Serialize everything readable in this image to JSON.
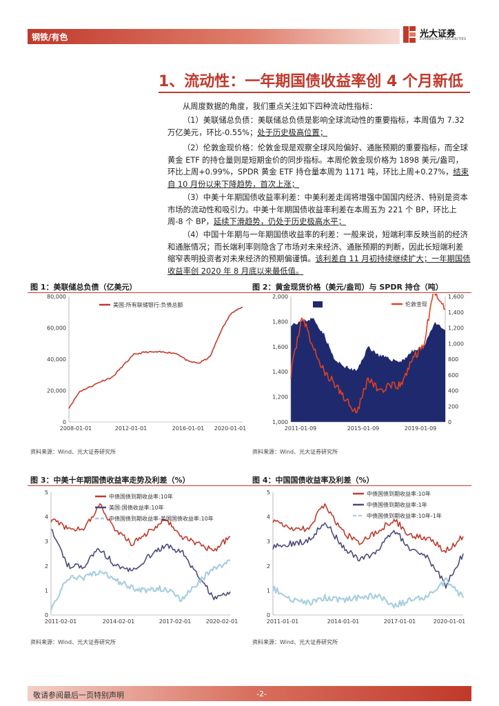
{
  "header": {
    "category": "钢铁/有色",
    "brand_cn": "光大证券",
    "brand_en": "EVERBRIGHT SECURITIES"
  },
  "section": {
    "title": "1、流动性：一年期国债收益率创 4 个月新低"
  },
  "body": {
    "intro": "从周度数据的角度，我们重点关注如下四种流动性指标：",
    "p1a": "（1）美联储总负债：美联储总负债是影响全球流动性的重要指标，本周值为 7.32 万亿美元，环比-0.55%；",
    "p1b": "处于历史极高位置；",
    "p2a": "（2）伦敦金现价格：伦敦金现是观察全球风险偏好、通胀预期的重要指标，而全球黄金 ETF 的持仓量则是短期金价的同步指标。本周伦敦金现价格为 1898 美元/盎司，环比上周+0.99%，SPDR 黄金 ETF 持仓量本周为 1171 吨，环比上周+0.27%，",
    "p2b": "结束自 10 月份以来下降趋势，首次上涨；",
    "p3a": "（3）中美十年期国债收益率利差：中美利差走阔将增强中国国内经济、特别是资本市场的流动性和吸引力。中美十年期国债收益率利差在本周五为 221 个 BP，环比上周-8 个 BP，",
    "p3b": "延续下滑趋势，仍处于历史极高水平；",
    "p4a": "（4）中国十年期与一年期国债收益率的利差：一般来说，短端利率反映当前的经济和通胀情况；而长端利率则隐含了市场对未来经济、通胀预期的判断，因此长短端利差缩窄表明投资者对未来经济的预期偏谨慎。",
    "p4b": "该利差自 11 月初持续继续扩大；一年期国债收益率创 2020 年 8 月底以来最低值。"
  },
  "figures": [
    {
      "title": "图 1：美联储总负债（亿美元）",
      "source": "资料来源：Wind、光大证券研究所"
    },
    {
      "title": "图 2：黄金现货价格（美元/盎司）与 SPDR 持仓（吨）",
      "source": "资料来源：Wind、光大证券研究所"
    },
    {
      "title": "图 3：中美十年期国债收益率走势及利差（%）",
      "source": "资料来源：Wind、光大证券研究所"
    },
    {
      "title": "图 4：中国国债收益率及利差（%）",
      "source": "资料来源：Wind、光大证券研究所"
    }
  ],
  "footer": {
    "disclaimer": "敬请参阅最后一页特别声明",
    "page": "-2-"
  },
  "colors": {
    "accent": "#c0392b",
    "navy": "#1f2a6e",
    "purple": "#4a4a7a",
    "lightblue": "#a8cfe0"
  },
  "chart_data": [
    {
      "type": "line",
      "x": [
        "2008-01-01",
        "2009-01-01",
        "2010-01-01",
        "2011-01-01",
        "2012-01-01",
        "2013-01-01",
        "2014-01-01",
        "2015-01-01",
        "2016-01-01",
        "2017-01-01",
        "2018-01-01",
        "2019-01-01",
        "2019-09-01",
        "2020-01-01",
        "2020-03-01",
        "2020-06-01",
        "2020-12-01"
      ],
      "series": [
        {
          "name": "美国:所有联储银行:负债总额",
          "values": [
            9000,
            19500,
            22500,
            26000,
            28500,
            36000,
            43000,
            44500,
            44500,
            44500,
            43500,
            38500,
            37500,
            41500,
            58000,
            70000,
            73200
          ]
        }
      ],
      "ylim": [
        0,
        80000
      ],
      "yticks": [
        "0",
        "20,000",
        "40,000",
        "60,000",
        "80,000"
      ],
      "xticks": [
        "2008-01-01",
        "2012-01-01",
        "2016-01-01",
        "2020-01-01"
      ],
      "legend": "top-left"
    },
    {
      "type": "area",
      "x": [
        "2011-01",
        "2011-09",
        "2012-06",
        "2013-06",
        "2014-06",
        "2015-06",
        "2016-01",
        "2016-07",
        "2017-06",
        "2018-06",
        "2019-01",
        "2019-09",
        "2020-03",
        "2020-08",
        "2020-12"
      ],
      "series": [
        {
          "name": "SPDR:持仓量（右）",
          "axis": "right",
          "values": [
            1250,
            1280,
            1320,
            1120,
            780,
            700,
            650,
            960,
            850,
            800,
            770,
            900,
            950,
            1260,
            1171
          ]
        },
        {
          "name": "伦敦金现",
          "axis": "left",
          "values": [
            1380,
            1850,
            1600,
            1400,
            1300,
            1180,
            1080,
            1350,
            1250,
            1280,
            1290,
            1500,
            1600,
            2050,
            1898
          ]
        }
      ],
      "ylim_left": [
        1000,
        2000
      ],
      "ylim_right": [
        0,
        1600
      ],
      "yticks_left": [
        "1,000",
        "1,200",
        "1,400",
        "1,600",
        "1,800",
        "2,000"
      ],
      "yticks_right": [
        "0",
        "200",
        "400",
        "600",
        "800",
        "1,000",
        "1,200",
        "1,400",
        "1,600"
      ],
      "xticks": [
        "2011-01-09",
        "2015-01-09",
        "2019-01-09"
      ],
      "legend": "top"
    },
    {
      "type": "line",
      "x": [
        "2011-02",
        "2012-02",
        "2013-02",
        "2014-02",
        "2015-02",
        "2016-02",
        "2017-02",
        "2018-02",
        "2019-02",
        "2020-02",
        "2020-05",
        "2020-12"
      ],
      "series": [
        {
          "name": "中债国债到期收益率:10年",
          "values": [
            3.9,
            3.5,
            3.5,
            4.5,
            3.4,
            2.9,
            3.4,
            3.9,
            3.2,
            2.9,
            2.6,
            3.2
          ]
        },
        {
          "name": "美国:国债收益率:10年",
          "values": [
            3.6,
            2.0,
            2.0,
            2.7,
            2.0,
            1.8,
            2.4,
            2.8,
            2.6,
            1.6,
            0.7,
            0.95
          ]
        },
        {
          "name": "中债国债到期收益率-美国国债收益率:10年",
          "values": [
            0.3,
            1.5,
            1.5,
            1.8,
            1.4,
            1.1,
            1.0,
            1.1,
            0.6,
            1.3,
            1.9,
            2.21
          ]
        }
      ],
      "ylim": [
        0,
        5
      ],
      "yticks": [
        "0",
        "1",
        "2",
        "3",
        "4",
        "5"
      ],
      "xticks": [
        "2011-02-01",
        "2014-02-01",
        "2017-02-01",
        "2020-02-01"
      ],
      "legend": "top"
    },
    {
      "type": "line",
      "x": [
        "2011-01",
        "2012-01",
        "2013-01",
        "2014-01",
        "2015-01",
        "2016-01",
        "2017-01",
        "2018-01",
        "2019-01",
        "2020-01",
        "2020-05",
        "2020-12"
      ],
      "series": [
        {
          "name": "中债国债到期收益率:10年",
          "values": [
            3.9,
            3.5,
            3.5,
            4.5,
            3.4,
            2.9,
            3.4,
            3.9,
            3.2,
            3.1,
            2.6,
            3.2
          ]
        },
        {
          "name": "中债国债到期收益率:1年",
          "values": [
            2.8,
            2.9,
            3.0,
            3.8,
            2.8,
            2.2,
            2.6,
            3.5,
            2.6,
            2.3,
            1.2,
            2.5
          ]
        },
        {
          "name": "中债国债到期收益率:10年-1年",
          "values": [
            1.1,
            0.6,
            0.5,
            0.7,
            0.6,
            0.7,
            0.8,
            0.4,
            0.6,
            0.8,
            1.4,
            0.7
          ]
        }
      ],
      "ylim": [
        0,
        5
      ],
      "yticks": [
        "0",
        "1",
        "2",
        "3",
        "4",
        "5"
      ],
      "xticks": [
        "2011-01-01",
        "2014-01-01",
        "2017-01-01",
        "2020-01-01"
      ],
      "legend": "top"
    }
  ]
}
